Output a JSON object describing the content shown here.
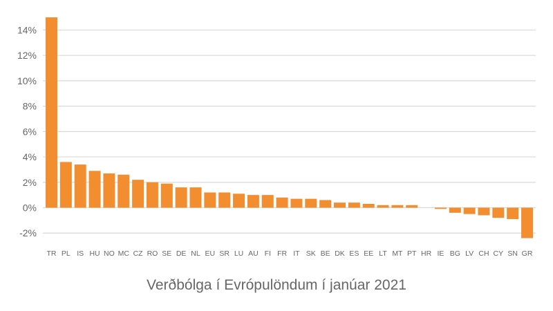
{
  "chart_data": {
    "type": "bar",
    "title": "Verðbólga í Evrópulöndum í janúar 2021",
    "xlabel": "",
    "ylabel": "",
    "ylim": [
      -3,
      15
    ],
    "yticks": [
      -2,
      0,
      2,
      4,
      6,
      8,
      10,
      12,
      14
    ],
    "ytick_labels": [
      "-2%",
      "0%",
      "2%",
      "4%",
      "6%",
      "8%",
      "10%",
      "12%",
      "14%"
    ],
    "grid": true,
    "legend": null,
    "bar_color": "#F28E2F",
    "categories": [
      "TR",
      "PL",
      "IS",
      "HU",
      "NO",
      "MC",
      "CZ",
      "RO",
      "SE",
      "DE",
      "NL",
      "EU",
      "SR",
      "LU",
      "AU",
      "FI",
      "FR",
      "IT",
      "SK",
      "BE",
      "DK",
      "ES",
      "EE",
      "LT",
      "MT",
      "PT",
      "HR",
      "IE",
      "BG",
      "LV",
      "CH",
      "CY",
      "SN",
      "GR"
    ],
    "values": [
      15.0,
      3.6,
      3.4,
      2.9,
      2.7,
      2.6,
      2.2,
      2.0,
      1.9,
      1.6,
      1.6,
      1.2,
      1.2,
      1.1,
      1.0,
      1.0,
      0.8,
      0.7,
      0.7,
      0.6,
      0.4,
      0.4,
      0.3,
      0.2,
      0.2,
      0.2,
      0.0,
      -0.1,
      -0.4,
      -0.5,
      -0.6,
      -0.8,
      -0.9,
      -2.4
    ]
  }
}
